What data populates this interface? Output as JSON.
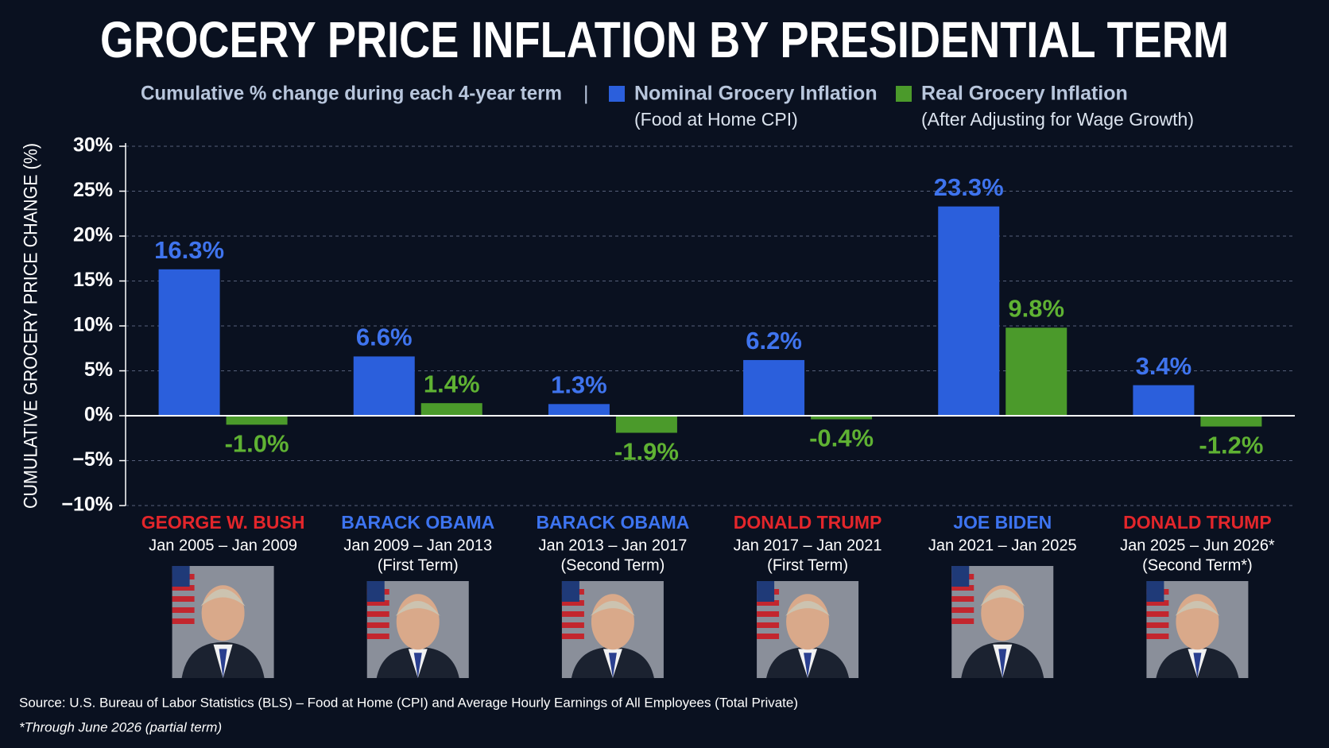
{
  "chart_data": {
    "type": "bar",
    "title": "GROCERY PRICE INFLATION BY PRESIDENTIAL TERM",
    "subtitle": "Cumulative % change during each 4-year term",
    "legend_separator": "|",
    "y_label": "CUMULATIVE GROCERY PRICE CHANGE (%)",
    "categories": [
      "GEORGE W. BUSH",
      "BARACK OBAMA",
      "BARACK OBAMA",
      "DONALD TRUMP",
      "JOE BIDEN",
      "DONALD TRUMP"
    ],
    "category_colors": [
      "#e3262b",
      "#3d74f0",
      "#3d74f0",
      "#e3262b",
      "#3d74f0",
      "#e3262b"
    ],
    "periods": [
      "Jan 2005 – Jan 2009",
      "Jan 2009 – Jan 2013",
      "Jan 2013 – Jan 2017",
      "Jan 2017 – Jan 2021",
      "Jan 2021 – Jan 2025",
      "Jan 2025 – Jun 2026*"
    ],
    "terms": [
      null,
      "(First Term)",
      "(Second Term)",
      "(First Term)",
      null,
      "(Second Term*)"
    ],
    "series": [
      {
        "name": "Nominal Grocery Inflation",
        "description": "(Food at Home CPI)",
        "color": "#2b5fdc",
        "label_color": "#3f74ee",
        "values": [
          16.3,
          6.6,
          1.3,
          6.2,
          23.3,
          3.4
        ],
        "value_labels": [
          "16.3%",
          "6.6%",
          "1.3%",
          "6.2%",
          "23.3%",
          "3.4%"
        ]
      },
      {
        "name": "Real Grocery Inflation",
        "description": "(After Adjusting for Wage Growth)",
        "color": "#4b9a2b",
        "label_color": "#5fb233",
        "values": [
          -1.0,
          1.4,
          -1.9,
          -0.4,
          9.8,
          -1.2
        ],
        "value_labels": [
          "-1.0%",
          "1.4%",
          "-1.9%",
          "-0.4%",
          "9.8%",
          "-1.2%"
        ]
      }
    ],
    "ylim": [
      -10,
      30
    ],
    "yticks": [
      {
        "value": -10,
        "label": "−10%"
      },
      {
        "value": -5,
        "label": "−5%"
      },
      {
        "value": 0,
        "label": "0%"
      },
      {
        "value": 5,
        "label": "5%"
      },
      {
        "value": 10,
        "label": "10%"
      },
      {
        "value": 15,
        "label": "15%"
      },
      {
        "value": 20,
        "label": "20%"
      },
      {
        "value": 25,
        "label": "25%"
      },
      {
        "value": 30,
        "label": "30%"
      }
    ],
    "grid": true,
    "source": "Source: U.S. Bureau of Labor Statistics (BLS) – Food at Home (CPI) and Average Hourly Earnings of All Employees (Total Private)",
    "footnote": "*Through June 2026 (partial term)"
  }
}
